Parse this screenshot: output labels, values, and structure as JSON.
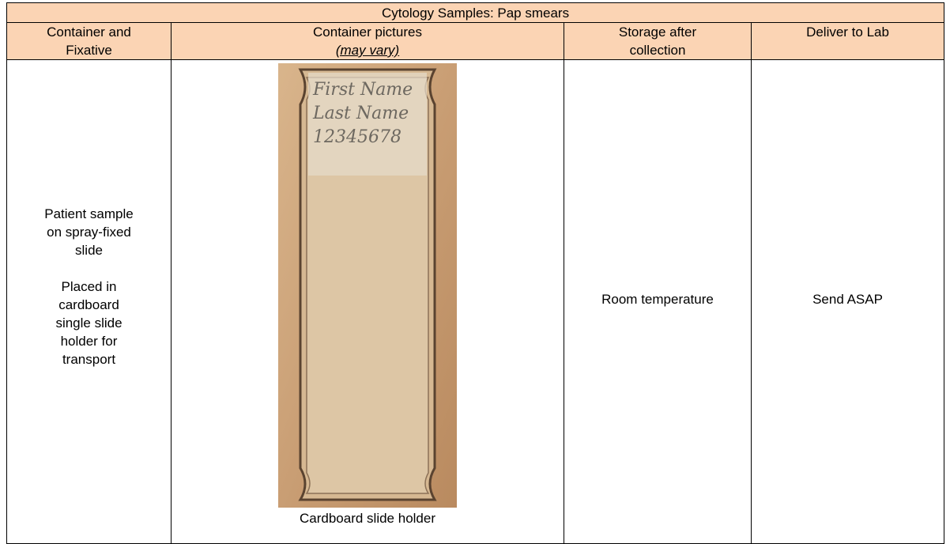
{
  "table": {
    "title": "Cytology Samples: Pap smears",
    "headers": [
      [
        "Container and",
        "Fixative"
      ],
      [
        "Container pictures",
        "(may vary)"
      ],
      [
        "Storage after",
        "collection"
      ],
      [
        "Deliver to Lab"
      ]
    ],
    "row": {
      "container": [
        [
          "Patient sample",
          "on spray-fixed",
          "slide"
        ],
        [
          "Placed in",
          "cardboard",
          "single slide",
          "holder for",
          "transport"
        ]
      ],
      "picture": {
        "handwriting": [
          "First Name",
          "Last Name",
          "12345678"
        ],
        "caption": "Cardboard slide holder"
      },
      "storage": "Room temperature",
      "deliver": "Send ASAP"
    }
  }
}
